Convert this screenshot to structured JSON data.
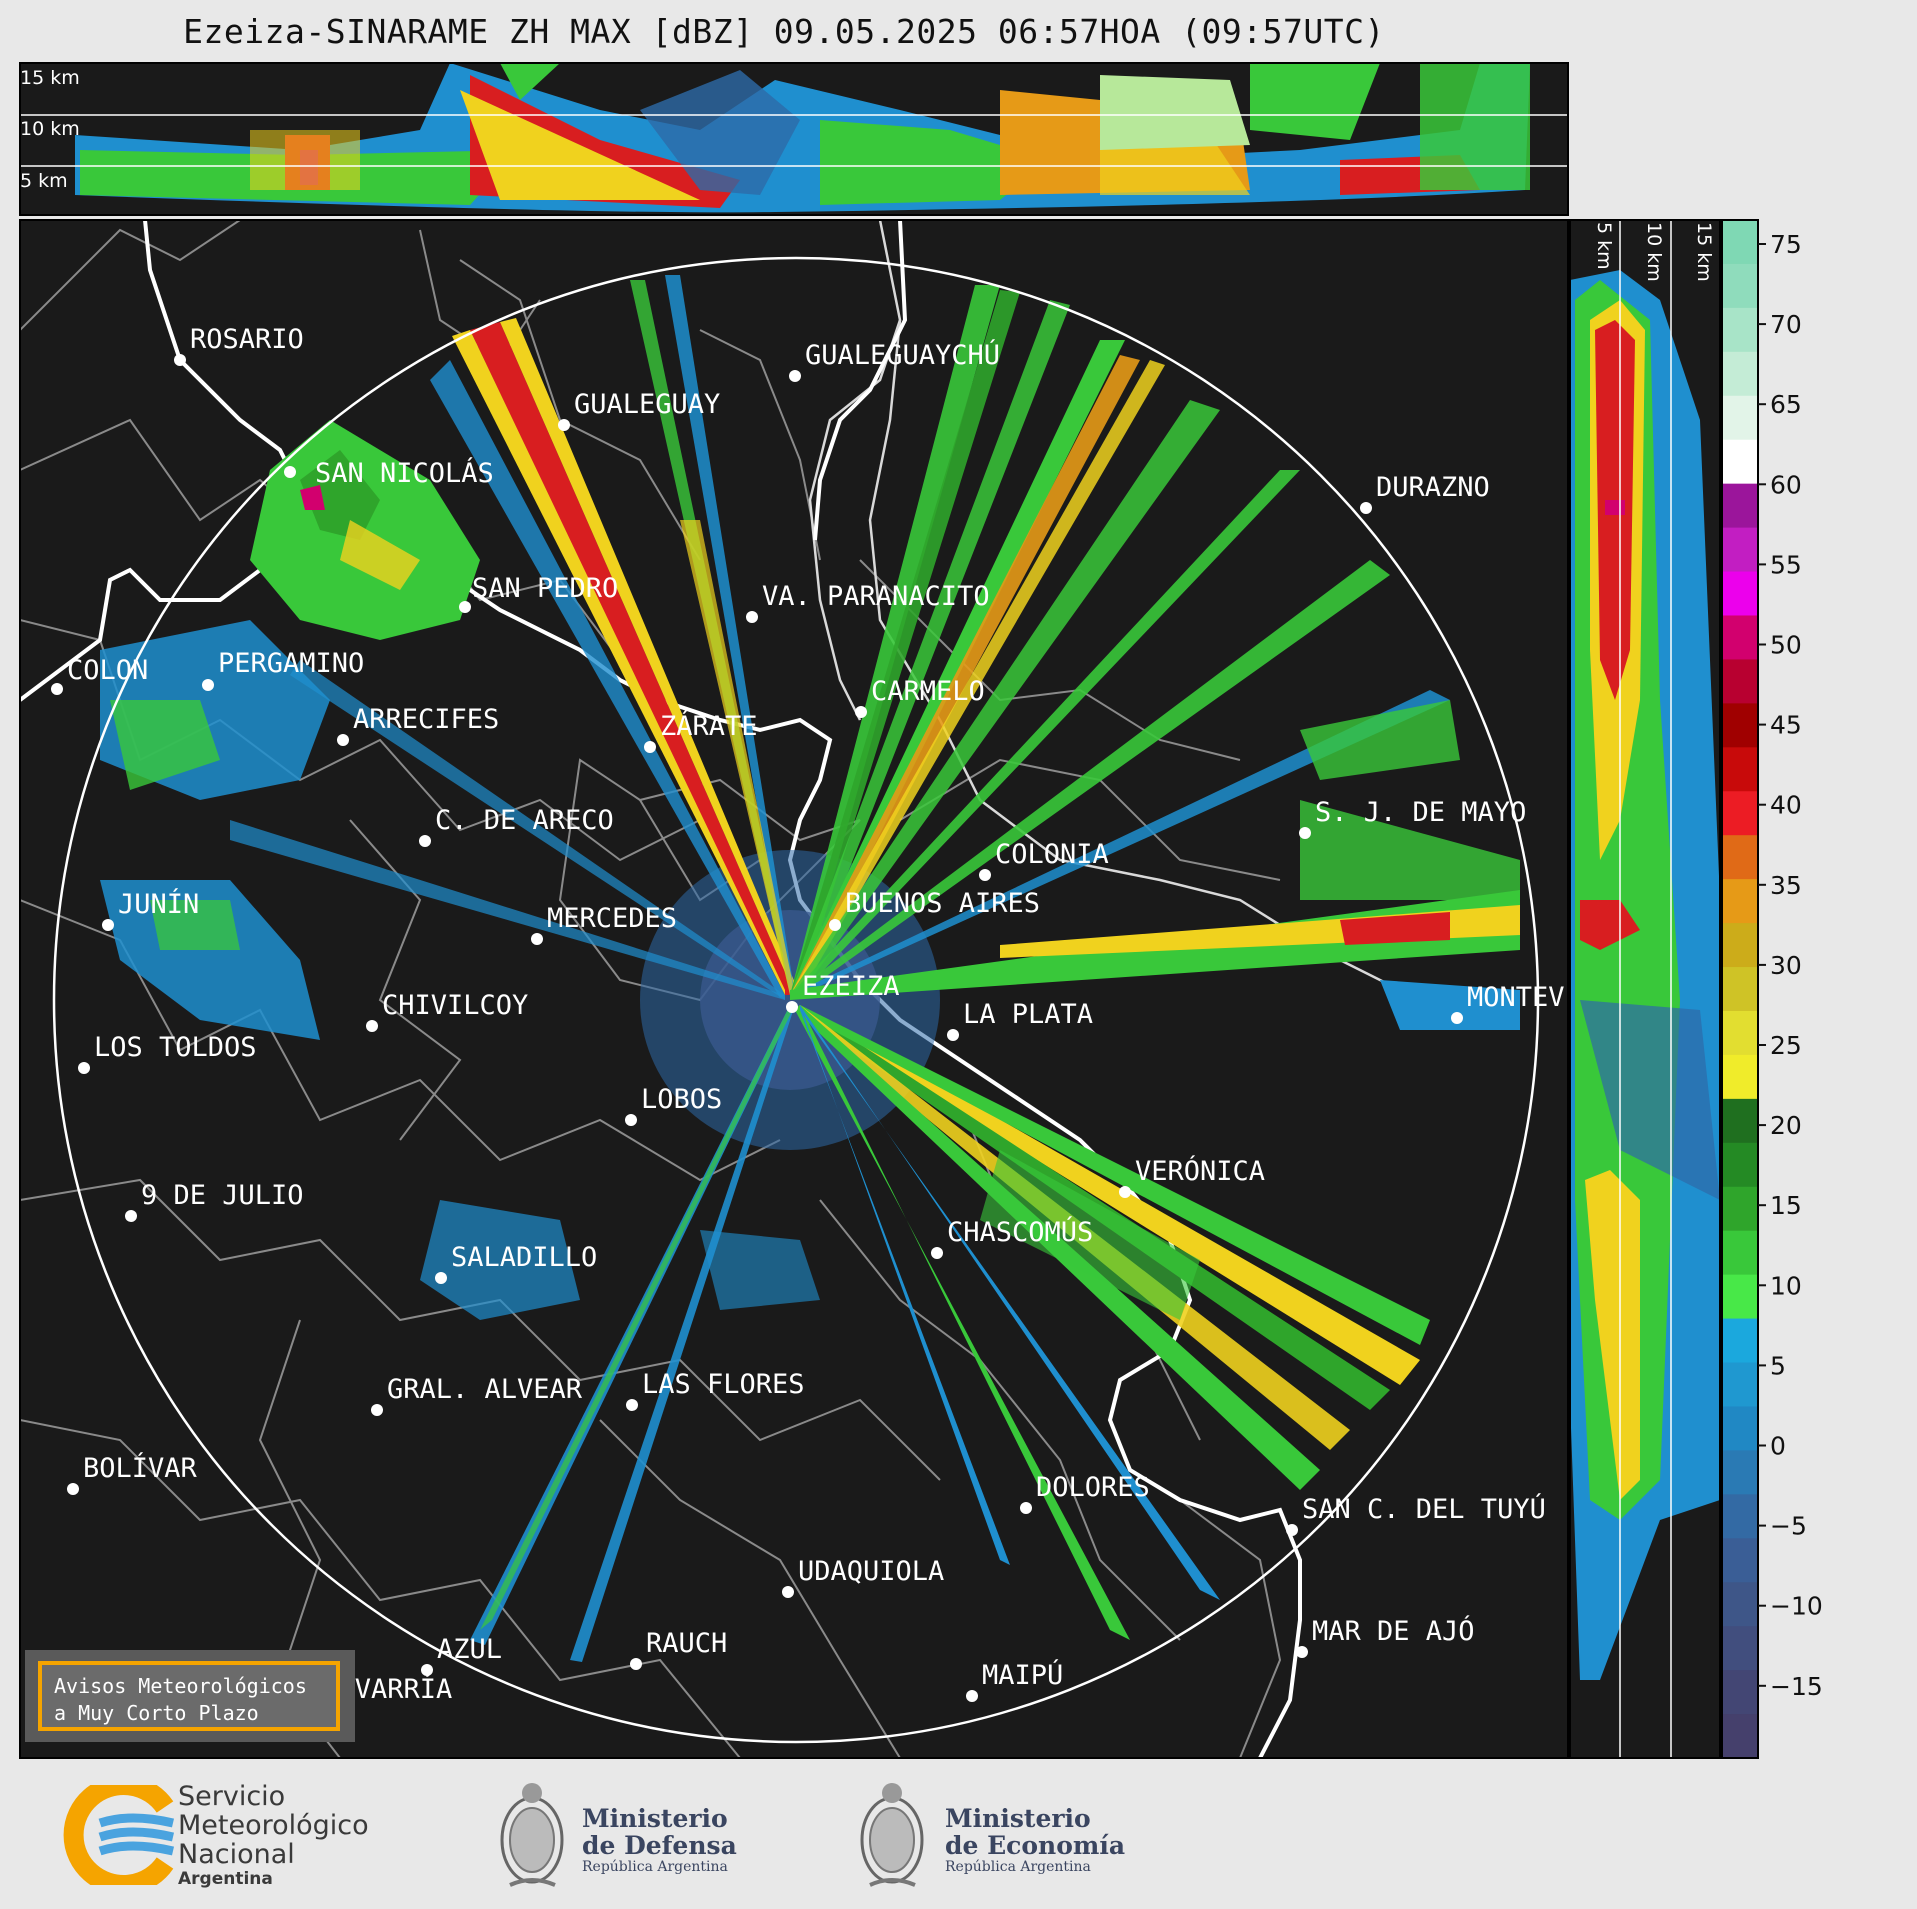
{
  "title": "Ezeiza-SINARAME ZH MAX [dBZ] 09.05.2025 06:57HOA (09:57UTC)",
  "top_panel_labels": [
    "15 km",
    "10 km",
    "5 km"
  ],
  "side_panel_labels": [
    "5 km",
    "10 km",
    "15 km"
  ],
  "colorbar": {
    "ticks": [
      "75",
      "70",
      "65",
      "60",
      "55",
      "50",
      "45",
      "40",
      "35",
      "30",
      "25",
      "20",
      "15",
      "10",
      "5",
      "0",
      "−5",
      "−10",
      "−15"
    ]
  },
  "cities": [
    {
      "name": "ROSARIO"
    },
    {
      "name": "GUALEGUAYCHÚ"
    },
    {
      "name": "GUALEGUAY"
    },
    {
      "name": "SAN NICOLÁS"
    },
    {
      "name": "DURAZNO"
    },
    {
      "name": "SAN PEDRO"
    },
    {
      "name": "VA. PARANACITO"
    },
    {
      "name": "COLON"
    },
    {
      "name": "PERGAMINO"
    },
    {
      "name": "CARMELO"
    },
    {
      "name": "ARRECIFES"
    },
    {
      "name": "ZÁRATE"
    },
    {
      "name": "S. J. DE MAYO"
    },
    {
      "name": "C. DE ARECO"
    },
    {
      "name": "COLONIA"
    },
    {
      "name": "JUNÍN"
    },
    {
      "name": "BUENOS AIRES"
    },
    {
      "name": "MERCEDES"
    },
    {
      "name": "EZEIZA"
    },
    {
      "name": "MONTEV"
    },
    {
      "name": "CHIVILCOY"
    },
    {
      "name": "LA PLATA"
    },
    {
      "name": "LOS TOLDOS"
    },
    {
      "name": "LOBOS"
    },
    {
      "name": "VERÓNICA"
    },
    {
      "name": "9 DE JULIO"
    },
    {
      "name": "CHASCOMÚS"
    },
    {
      "name": "SALADILLO"
    },
    {
      "name": "GRAL. ALVEAR"
    },
    {
      "name": "LAS FLORES"
    },
    {
      "name": "BOLÍVAR"
    },
    {
      "name": "DOLORES"
    },
    {
      "name": "SAN C. DEL TUYÚ"
    },
    {
      "name": "UDAQUIOLA"
    },
    {
      "name": "RAUCH"
    },
    {
      "name": "AZUL"
    },
    {
      "name": "MAR DE AJÓ"
    },
    {
      "name": "OLAVARRÍA"
    },
    {
      "name": "MAIPÚ"
    }
  ],
  "avisos": {
    "line1": "Avisos Meteorológicos",
    "line2": "a Muy Corto Plazo"
  },
  "logos": {
    "smn": {
      "line1": "Servicio",
      "line2": "Meteorológico",
      "line3": "Nacional",
      "line4": "Argentina"
    },
    "defensa": {
      "line1": "Ministerio",
      "line2": "de Defensa",
      "line3": "República Argentina"
    },
    "economia": {
      "line1": "Ministerio",
      "line2": "de Economía",
      "line3": "República Argentina"
    }
  },
  "colors": {
    "background_map": "#1a1a1a",
    "range_ring": "#ffffff",
    "coast": "#ffffff",
    "borders": "#8a8a8a",
    "orange_frame": "#f5a400"
  }
}
